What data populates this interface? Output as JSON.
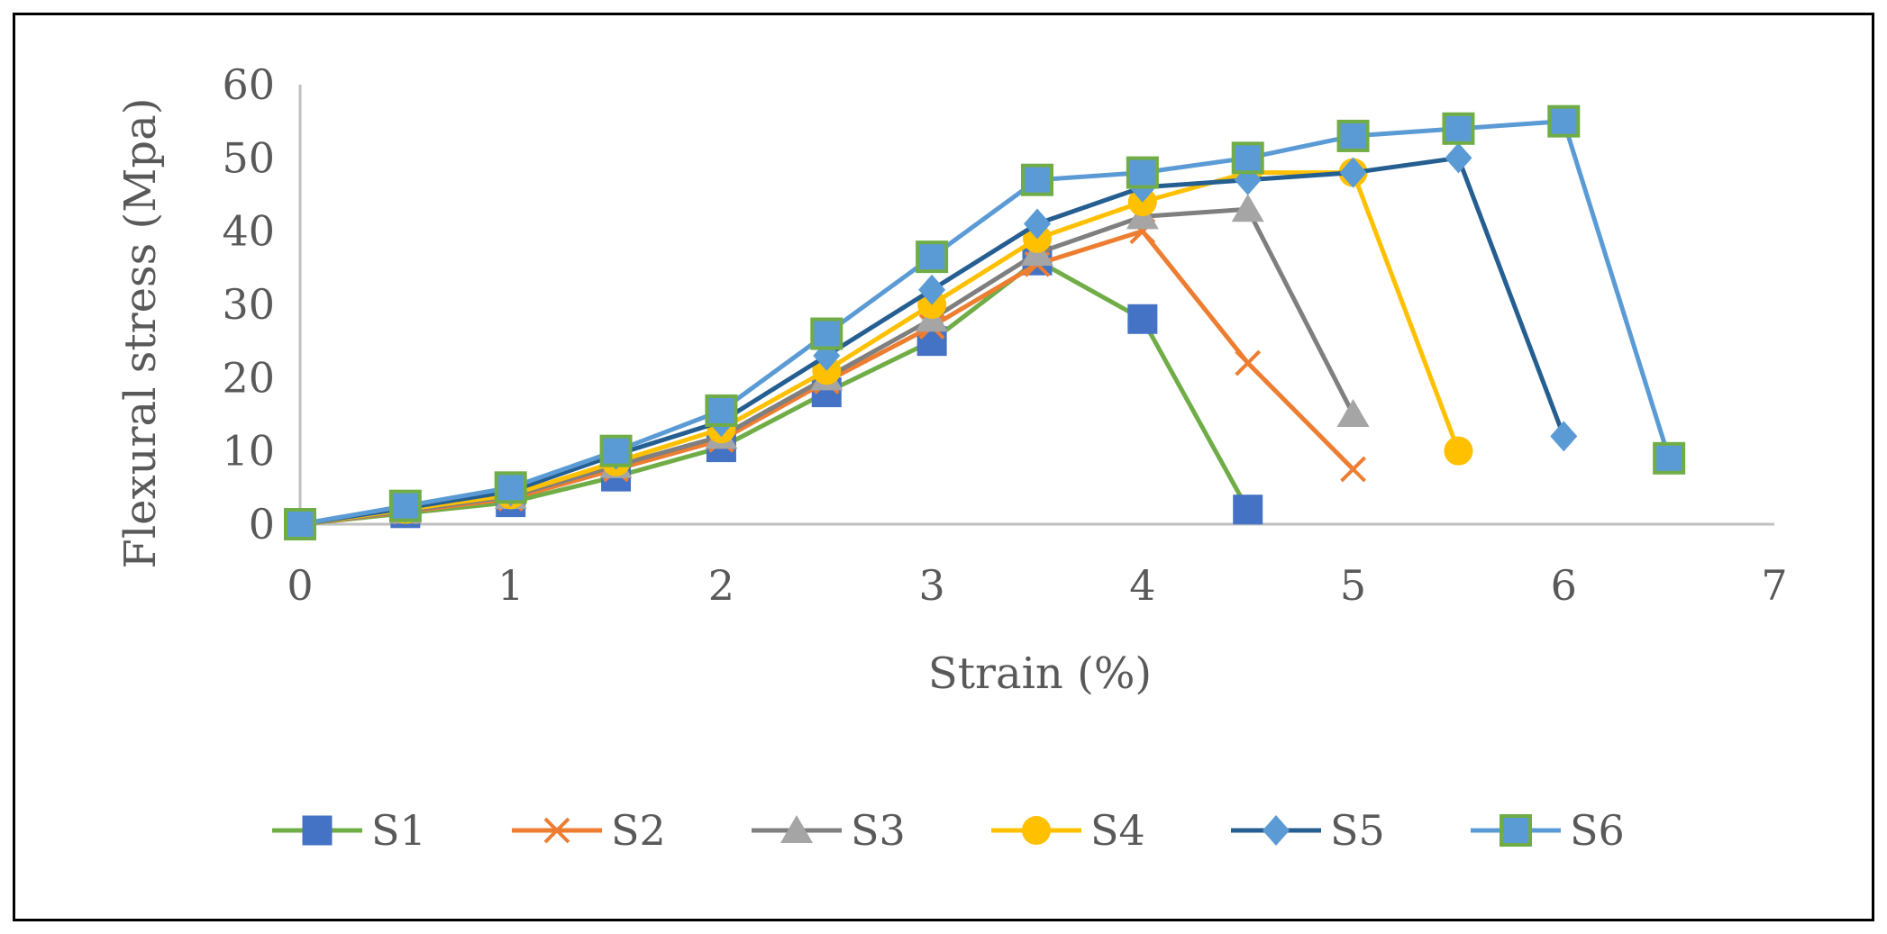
{
  "chart_data": {
    "type": "line",
    "title": "",
    "xlabel": "Strain (%)",
    "ylabel": "Flexural stress (Mpa)",
    "xlim": [
      0,
      7
    ],
    "ylim": [
      0,
      60
    ],
    "x_ticks": [
      "0",
      "1",
      "2",
      "3",
      "4",
      "5",
      "6",
      "7"
    ],
    "y_ticks": [
      "0",
      "10",
      "20",
      "30",
      "40",
      "50",
      "60"
    ],
    "grid": false,
    "legend_position": "bottom",
    "series": [
      {
        "name": "S1",
        "line_color": "#70AD47",
        "marker": "square",
        "marker_color": "#4472C4",
        "x": [
          0,
          0.5,
          1,
          1.5,
          2,
          2.5,
          3,
          3.5,
          4,
          4.5
        ],
        "y": [
          0,
          1.5,
          3,
          6.5,
          10.5,
          18,
          25,
          36,
          28,
          2
        ]
      },
      {
        "name": "S2",
        "line_color": "#ED7D31",
        "marker": "x",
        "marker_color": "#ED7D31",
        "x": [
          0,
          0.5,
          1,
          1.5,
          2,
          2.5,
          3,
          3.5,
          4,
          4.5,
          5
        ],
        "y": [
          0,
          1.7,
          3.5,
          7.5,
          11.5,
          19.5,
          27,
          35.5,
          40,
          22,
          7.5
        ]
      },
      {
        "name": "S3",
        "line_color": "#7F7F7F",
        "marker": "triangle",
        "marker_color": "#A5A5A5",
        "x": [
          0,
          0.5,
          1,
          1.5,
          2,
          2.5,
          3,
          3.5,
          4,
          4.5,
          5
        ],
        "y": [
          0,
          1.8,
          3.8,
          8,
          12,
          20,
          28,
          37,
          42,
          43,
          15
        ]
      },
      {
        "name": "S4",
        "line_color": "#FFC000",
        "marker": "circle",
        "marker_color": "#FFC000",
        "x": [
          0,
          0.5,
          1,
          1.5,
          2,
          2.5,
          3,
          3.5,
          4,
          4.5,
          5,
          5.5
        ],
        "y": [
          0,
          2,
          4,
          8.5,
          13,
          21,
          30,
          39,
          44,
          48,
          48,
          10
        ]
      },
      {
        "name": "S5",
        "line_color": "#255E91",
        "marker": "diamond",
        "marker_color": "#5B9BD5",
        "x": [
          0,
          0.5,
          1,
          1.5,
          2,
          2.5,
          3,
          3.5,
          4,
          4.5,
          5,
          5.5,
          6
        ],
        "y": [
          0,
          2.2,
          4.5,
          9.5,
          14,
          23,
          32,
          41,
          46,
          47,
          48,
          50,
          12
        ]
      },
      {
        "name": "S6",
        "line_color": "#5B9BD5",
        "marker": "square",
        "marker_color": "#5B9BD5",
        "marker_edge": "#70AD47",
        "x": [
          0,
          0.5,
          1,
          1.5,
          2,
          2.5,
          3,
          3.5,
          4,
          4.5,
          5,
          5.5,
          6,
          6.5
        ],
        "y": [
          0,
          2.5,
          5,
          10,
          15.5,
          26,
          36.5,
          47,
          48,
          50,
          53,
          54,
          55,
          9
        ]
      }
    ]
  }
}
